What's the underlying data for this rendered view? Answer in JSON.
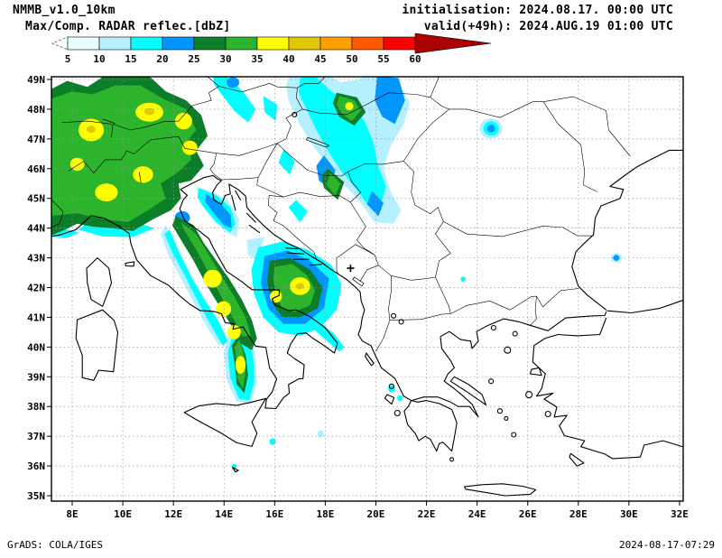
{
  "header": {
    "model": "NMMB_v1.0_10km",
    "field": "Max/Comp. RADAR reflec.[dbZ]",
    "init": "initialisation: 2024.08.17. 00:00 UTC",
    "valid": "valid(+49h): 2024.AUG.19 01:00 UTC"
  },
  "footer": {
    "left": "GrADS: COLA/IGES",
    "right": "2024-08-17-07:29"
  },
  "chart_data": {
    "type": "map",
    "title": "Max/Comp. RADAR reflec.[dbZ]",
    "units": "dbZ",
    "projection": "lat-lon",
    "region": {
      "lon_min": 7.2,
      "lon_max": 32.1,
      "lat_min": 34.8,
      "lat_max": 49.1
    },
    "grid": "dashed",
    "x_ticks": [
      "8E",
      "10E",
      "12E",
      "14E",
      "16E",
      "18E",
      "20E",
      "22E",
      "24E",
      "26E",
      "28E",
      "30E",
      "32E"
    ],
    "y_ticks": [
      "49N",
      "48N",
      "47N",
      "46N",
      "45N",
      "44N",
      "43N",
      "42N",
      "41N",
      "40N",
      "39N",
      "38N",
      "37N",
      "36N",
      "35N"
    ],
    "colorbar": {
      "units": "dbZ",
      "ticks": [
        5,
        10,
        15,
        20,
        25,
        30,
        35,
        40,
        45,
        50,
        55,
        60
      ],
      "segments": [
        {
          "label": "<5",
          "from": 0,
          "color": "#ffffff",
          "style": "dashed-outline"
        },
        {
          "label": "5-10",
          "from": 5,
          "color": "#e8ffff"
        },
        {
          "label": "10-15",
          "from": 10,
          "color": "#b4f0ff"
        },
        {
          "label": "15-20",
          "from": 15,
          "color": "#00ffff"
        },
        {
          "label": "20-25",
          "from": 20,
          "color": "#0096ff"
        },
        {
          "label": "25-30",
          "from": 25,
          "color": "#0c7d28"
        },
        {
          "label": "30-35",
          "from": 30,
          "color": "#2db42d"
        },
        {
          "label": "35-40",
          "from": 35,
          "color": "#ffff00"
        },
        {
          "label": "40-45",
          "from": 40,
          "color": "#e1c800"
        },
        {
          "label": "45-50",
          "from": 45,
          "color": "#ffa000"
        },
        {
          "label": "50-55",
          "from": 50,
          "color": "#ff5a00"
        },
        {
          "label": "55-60",
          "from": 55,
          "color": "#ff0000"
        },
        {
          "label": ">60",
          "from": 60,
          "color": "#aa0000",
          "style": "arrow"
        }
      ]
    },
    "overlay_marker": {
      "glyph": "+",
      "lon": 19.0,
      "lat": 42.65
    },
    "echo_regions": [
      {
        "area": "Alps / northern Italy / southern Germany / Austria",
        "coverage": "widespread",
        "max_dbz": 45
      },
      {
        "area": "Central Apennines, Italy",
        "coverage": "band",
        "max_dbz": 40
      },
      {
        "area": "Southern Adriatic / Puglia",
        "coverage": "cluster",
        "max_dbz": 45
      },
      {
        "area": "Tyrrhenian Sea west of Calabria",
        "coverage": "narrow band",
        "max_dbz": 40
      },
      {
        "area": "Pannonian basin band (Slovenia-Hungary-Serbia)",
        "coverage": "band",
        "max_dbz": 35
      },
      {
        "area": "Northern Adriatic coast",
        "coverage": "band",
        "max_dbz": 25
      },
      {
        "area": "Scattered spots: NE Romania, W Black Sea coast, Ionian islands, Malta / SE Sicily",
        "coverage": "isolated",
        "max_dbz": 25
      }
    ]
  }
}
